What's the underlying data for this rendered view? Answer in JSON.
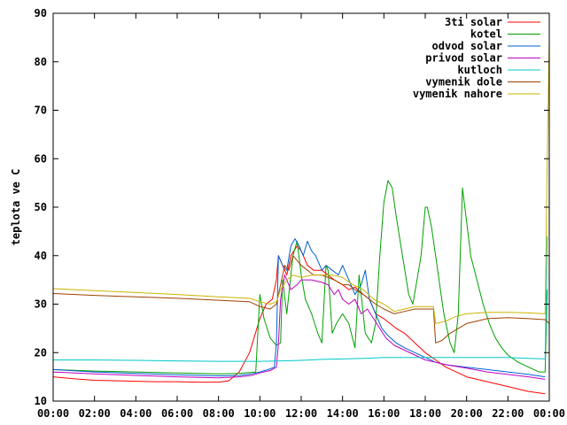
{
  "chart_data": {
    "type": "line",
    "title": "",
    "xlabel": "",
    "ylabel": "teplota ve C",
    "xlim": [
      0,
      24
    ],
    "ylim": [
      10,
      90
    ],
    "x_ticks": [
      {
        "value": 0,
        "label": "00:00"
      },
      {
        "value": 2,
        "label": "02:00"
      },
      {
        "value": 4,
        "label": "04:00"
      },
      {
        "value": 6,
        "label": "06:00"
      },
      {
        "value": 8,
        "label": "08:00"
      },
      {
        "value": 10,
        "label": "10:00"
      },
      {
        "value": 12,
        "label": "12:00"
      },
      {
        "value": 14,
        "label": "14:00"
      },
      {
        "value": 16,
        "label": "16:00"
      },
      {
        "value": 18,
        "label": "18:00"
      },
      {
        "value": 20,
        "label": "20:00"
      },
      {
        "value": 22,
        "label": "22:00"
      },
      {
        "value": 24,
        "label": "00:00"
      }
    ],
    "y_ticks": [
      {
        "value": 10,
        "label": "10"
      },
      {
        "value": 20,
        "label": "20"
      },
      {
        "value": 30,
        "label": "30"
      },
      {
        "value": 40,
        "label": "40"
      },
      {
        "value": 50,
        "label": "50"
      },
      {
        "value": 60,
        "label": "60"
      },
      {
        "value": 70,
        "label": "70"
      },
      {
        "value": 80,
        "label": "80"
      },
      {
        "value": 90,
        "label": "90"
      }
    ],
    "grid": false,
    "legend": "top-right",
    "series": [
      {
        "name": "3ti solar",
        "color": "#ff0000",
        "points": [
          [
            0,
            15
          ],
          [
            1,
            14.6
          ],
          [
            2,
            14.3
          ],
          [
            3,
            14.2
          ],
          [
            4,
            14.1
          ],
          [
            5,
            14
          ],
          [
            6,
            14
          ],
          [
            7,
            13.9
          ],
          [
            8,
            13.9
          ],
          [
            8.5,
            14.2
          ],
          [
            9,
            16
          ],
          [
            9.5,
            20
          ],
          [
            10,
            27
          ],
          [
            10.3,
            30
          ],
          [
            10.6,
            31
          ],
          [
            10.8,
            35
          ],
          [
            10.9,
            40
          ],
          [
            11.1,
            38
          ],
          [
            11.3,
            36
          ],
          [
            11.5,
            40
          ],
          [
            11.8,
            42
          ],
          [
            12,
            41
          ],
          [
            12.3,
            38
          ],
          [
            12.6,
            37
          ],
          [
            13,
            37
          ],
          [
            13.3,
            36
          ],
          [
            13.6,
            35
          ],
          [
            14,
            34
          ],
          [
            14.3,
            33
          ],
          [
            14.6,
            33.5
          ],
          [
            15,
            32
          ],
          [
            15.3,
            31
          ],
          [
            15.6,
            28
          ],
          [
            16,
            27
          ],
          [
            16.3,
            26
          ],
          [
            16.6,
            25
          ],
          [
            17,
            24
          ],
          [
            17.5,
            22
          ],
          [
            18,
            20
          ],
          [
            18.5,
            18.5
          ],
          [
            19,
            17
          ],
          [
            19.5,
            16
          ],
          [
            20,
            15
          ],
          [
            21,
            14
          ],
          [
            22,
            13
          ],
          [
            23,
            12
          ],
          [
            23.8,
            11.5
          ]
        ]
      },
      {
        "name": "kotel",
        "color": "#00a000",
        "points": [
          [
            0,
            16.5
          ],
          [
            2,
            16.2
          ],
          [
            4,
            16
          ],
          [
            6,
            15.8
          ],
          [
            8,
            15.6
          ],
          [
            9,
            15.7
          ],
          [
            9.8,
            16
          ],
          [
            10,
            32
          ],
          [
            10.2,
            27
          ],
          [
            10.5,
            23
          ],
          [
            10.8,
            21.5
          ],
          [
            11,
            22
          ],
          [
            11.1,
            35
          ],
          [
            11.3,
            28
          ],
          [
            11.6,
            40
          ],
          [
            11.8,
            43
          ],
          [
            12,
            36
          ],
          [
            12.2,
            31
          ],
          [
            12.5,
            28
          ],
          [
            12.8,
            24
          ],
          [
            13,
            22
          ],
          [
            13.2,
            38
          ],
          [
            13.3,
            37
          ],
          [
            13.5,
            24
          ],
          [
            13.7,
            26
          ],
          [
            14,
            28
          ],
          [
            14.3,
            26
          ],
          [
            14.6,
            21
          ],
          [
            14.8,
            36
          ],
          [
            15.1,
            24
          ],
          [
            15.4,
            22
          ],
          [
            15.6,
            26
          ],
          [
            15.8,
            40
          ],
          [
            16,
            51
          ],
          [
            16.2,
            55.5
          ],
          [
            16.4,
            54
          ],
          [
            16.6,
            48
          ],
          [
            16.9,
            40
          ],
          [
            17.2,
            32
          ],
          [
            17.4,
            30
          ],
          [
            17.6,
            35
          ],
          [
            17.8,
            40
          ],
          [
            18,
            50
          ],
          [
            18.1,
            50
          ],
          [
            18.3,
            46
          ],
          [
            18.5,
            40
          ],
          [
            18.7,
            34
          ],
          [
            18.9,
            28
          ],
          [
            19,
            26
          ],
          [
            19.2,
            22
          ],
          [
            19.4,
            20
          ],
          [
            19.6,
            28
          ],
          [
            19.8,
            54
          ],
          [
            20,
            47
          ],
          [
            20.2,
            40
          ],
          [
            20.5,
            35
          ],
          [
            20.8,
            30
          ],
          [
            21.1,
            26
          ],
          [
            21.4,
            23
          ],
          [
            21.7,
            21
          ],
          [
            22,
            19.5
          ],
          [
            22.5,
            18
          ],
          [
            23,
            17
          ],
          [
            23.5,
            16
          ],
          [
            23.8,
            16
          ],
          [
            23.9,
            33
          ]
        ]
      },
      {
        "name": "odvod solar",
        "color": "#0060d0",
        "points": [
          [
            0,
            16.5
          ],
          [
            2,
            16
          ],
          [
            4,
            15.7
          ],
          [
            6,
            15.4
          ],
          [
            8,
            15.2
          ],
          [
            9,
            15.3
          ],
          [
            9.6,
            15.6
          ],
          [
            10,
            16
          ],
          [
            10.4,
            16.5
          ],
          [
            10.7,
            17
          ],
          [
            10.8,
            22
          ],
          [
            10.9,
            40
          ],
          [
            11.1,
            38
          ],
          [
            11.3,
            37
          ],
          [
            11.5,
            42
          ],
          [
            11.7,
            43.5
          ],
          [
            11.9,
            42
          ],
          [
            12.1,
            40
          ],
          [
            12.3,
            43
          ],
          [
            12.5,
            41
          ],
          [
            12.7,
            40
          ],
          [
            13,
            37
          ],
          [
            13.2,
            38
          ],
          [
            13.5,
            37
          ],
          [
            13.8,
            36
          ],
          [
            14,
            38
          ],
          [
            14.3,
            35
          ],
          [
            14.6,
            32
          ],
          [
            14.9,
            34
          ],
          [
            15.1,
            37
          ],
          [
            15.3,
            31
          ],
          [
            15.6,
            28
          ],
          [
            15.9,
            25
          ],
          [
            16.2,
            23.5
          ],
          [
            16.6,
            22
          ],
          [
            17,
            21
          ],
          [
            17.5,
            20
          ],
          [
            18,
            19
          ],
          [
            18.5,
            18
          ],
          [
            19,
            17.5
          ],
          [
            20,
            17
          ],
          [
            21,
            16.5
          ],
          [
            22,
            16
          ],
          [
            23,
            15.5
          ],
          [
            23.8,
            15
          ]
        ]
      },
      {
        "name": "privod solar",
        "color": "#c000c0",
        "points": [
          [
            0,
            16
          ],
          [
            2,
            15.6
          ],
          [
            4,
            15.3
          ],
          [
            6,
            15
          ],
          [
            8,
            14.8
          ],
          [
            9,
            15
          ],
          [
            9.6,
            15.3
          ],
          [
            10,
            15.8
          ],
          [
            10.5,
            16.3
          ],
          [
            10.8,
            17
          ],
          [
            10.9,
            22
          ],
          [
            11,
            31
          ],
          [
            11.2,
            36
          ],
          [
            11.5,
            33
          ],
          [
            11.8,
            34
          ],
          [
            12,
            35
          ],
          [
            12.5,
            35
          ],
          [
            13,
            34.5
          ],
          [
            13.3,
            34
          ],
          [
            13.6,
            32
          ],
          [
            13.8,
            33
          ],
          [
            14,
            31
          ],
          [
            14.3,
            30
          ],
          [
            14.6,
            31
          ],
          [
            14.9,
            28
          ],
          [
            15.2,
            29
          ],
          [
            15.5,
            27
          ],
          [
            15.8,
            25
          ],
          [
            16.1,
            23
          ],
          [
            16.5,
            21.5
          ],
          [
            17,
            20.5
          ],
          [
            17.5,
            19.5
          ],
          [
            18,
            18.5
          ],
          [
            18.5,
            18
          ],
          [
            19,
            17.5
          ],
          [
            20,
            16.8
          ],
          [
            21,
            16
          ],
          [
            22,
            15.5
          ],
          [
            23,
            15
          ],
          [
            23.8,
            14.5
          ]
        ]
      },
      {
        "name": "kutloch",
        "color": "#00c8c8",
        "points": [
          [
            0,
            18.5
          ],
          [
            2,
            18.5
          ],
          [
            4,
            18.4
          ],
          [
            6,
            18.3
          ],
          [
            8,
            18.2
          ],
          [
            10,
            18.2
          ],
          [
            11,
            18.3
          ],
          [
            12,
            18.4
          ],
          [
            13,
            18.6
          ],
          [
            14,
            18.7
          ],
          [
            15,
            18.8
          ],
          [
            16,
            19
          ],
          [
            17,
            19
          ],
          [
            18,
            19
          ],
          [
            19,
            19
          ],
          [
            20,
            19
          ],
          [
            21,
            19
          ],
          [
            22,
            19
          ],
          [
            23,
            18.8
          ],
          [
            23.8,
            18.7
          ],
          [
            23.9,
            44
          ]
        ]
      },
      {
        "name": "vymenik dole",
        "color": "#a04000",
        "points": [
          [
            0,
            32.2
          ],
          [
            2,
            31.8
          ],
          [
            4,
            31.5
          ],
          [
            6,
            31.2
          ],
          [
            8,
            30.8
          ],
          [
            9.5,
            30.5
          ],
          [
            10,
            29.5
          ],
          [
            10.5,
            29
          ],
          [
            10.8,
            30
          ],
          [
            11,
            34
          ],
          [
            11.2,
            38
          ],
          [
            11.4,
            37
          ],
          [
            11.6,
            40
          ],
          [
            11.8,
            39
          ],
          [
            12,
            38
          ],
          [
            12.3,
            37
          ],
          [
            12.6,
            36
          ],
          [
            13,
            36
          ],
          [
            13.3,
            35.5
          ],
          [
            13.6,
            35
          ],
          [
            14,
            34
          ],
          [
            14.3,
            34
          ],
          [
            14.6,
            33
          ],
          [
            15,
            32
          ],
          [
            15.3,
            31
          ],
          [
            15.6,
            30
          ],
          [
            16,
            29
          ],
          [
            16.5,
            28
          ],
          [
            17,
            28.5
          ],
          [
            17.5,
            29
          ],
          [
            18,
            29
          ],
          [
            18.4,
            29
          ],
          [
            18.5,
            22
          ],
          [
            18.8,
            22.5
          ],
          [
            19.2,
            24
          ],
          [
            19.6,
            25
          ],
          [
            20,
            26
          ],
          [
            21,
            27
          ],
          [
            22,
            27.2
          ],
          [
            23,
            27
          ],
          [
            23.8,
            26.8
          ],
          [
            24,
            26
          ]
        ]
      },
      {
        "name": "vymenik nahore",
        "color": "#c8b400",
        "points": [
          [
            0,
            33.2
          ],
          [
            2,
            32.8
          ],
          [
            4,
            32.4
          ],
          [
            6,
            32
          ],
          [
            8,
            31.5
          ],
          [
            9.5,
            31.2
          ],
          [
            10,
            30.5
          ],
          [
            10.5,
            30
          ],
          [
            10.8,
            30.5
          ],
          [
            11,
            33
          ],
          [
            11.3,
            35
          ],
          [
            11.6,
            36
          ],
          [
            12,
            35.5
          ],
          [
            12.5,
            36
          ],
          [
            13,
            36
          ],
          [
            13.5,
            36
          ],
          [
            14,
            35.5
          ],
          [
            14.5,
            34
          ],
          [
            15,
            33
          ],
          [
            15.5,
            31
          ],
          [
            16,
            30
          ],
          [
            16.5,
            28.5
          ],
          [
            17,
            29
          ],
          [
            17.5,
            29.5
          ],
          [
            18,
            29.5
          ],
          [
            18.4,
            29.5
          ],
          [
            18.5,
            26
          ],
          [
            19,
            26.5
          ],
          [
            19.5,
            27.5
          ],
          [
            20,
            28
          ],
          [
            21,
            28.3
          ],
          [
            22,
            28.3
          ],
          [
            23,
            28.2
          ],
          [
            23.8,
            28
          ],
          [
            23.9,
            60
          ],
          [
            24,
            85
          ]
        ]
      }
    ]
  }
}
